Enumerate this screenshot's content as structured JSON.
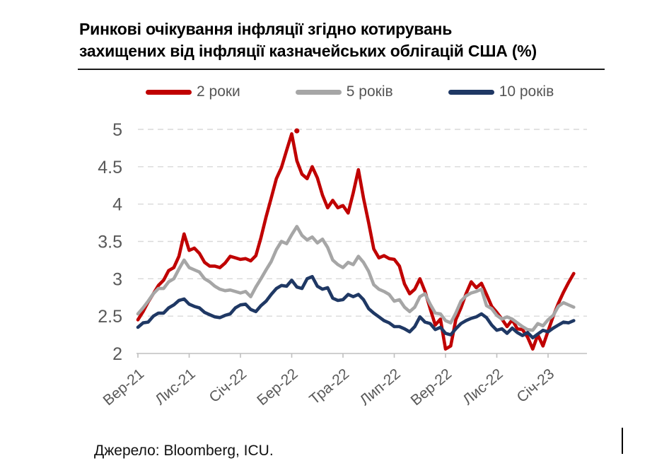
{
  "title": {
    "line1": "Ринкові очікування інфляції згідно котирувань",
    "line2": "захищених від інфляції казначейських облігацій США (%)"
  },
  "source": {
    "text": "Джерело: Bloomberg, ICU."
  },
  "chart_data": {
    "type": "line",
    "title": "Ринкові очікування інфляції згідно котирувань захищених від інфляції казначейських облігацій США (%)",
    "legend_position": "top",
    "grid": "horizontal-dashed",
    "colors": {
      "accent_red": "#C00000",
      "gray": "#A6A6A6",
      "navy": "#1F3864",
      "gridline": "#D9D9D9",
      "axis": "#BFBFBF",
      "tick_text": "#595959"
    },
    "y_axis": {
      "ticks": [
        2,
        2.5,
        3,
        3.5,
        4,
        4.5,
        5
      ],
      "range": [
        2,
        5
      ]
    },
    "x_axis": {
      "tick_labels": [
        "Вер-21",
        "Лис-21",
        "Січ-22",
        "Бер-22",
        "Тра-22",
        "Лип-22",
        "Вер-22",
        "Лис-22",
        "Січ-23"
      ],
      "tick_positions_months": [
        0,
        2,
        4,
        6,
        8,
        10,
        12,
        14,
        16
      ],
      "data_end_month": 17.0
    },
    "x_start_month": 0,
    "x_step_month": 0.2,
    "series": [
      {
        "name": "2 роки",
        "color": "#C00000",
        "values": [
          2.45,
          2.56,
          2.69,
          2.8,
          2.91,
          2.98,
          3.11,
          3.15,
          3.3,
          3.6,
          3.38,
          3.41,
          3.34,
          3.22,
          3.17,
          3.17,
          3.15,
          3.21,
          3.3,
          3.28,
          3.26,
          3.27,
          3.24,
          3.31,
          3.55,
          3.83,
          4.08,
          4.34,
          4.49,
          4.72,
          4.94,
          4.58,
          4.4,
          4.34,
          4.5,
          4.35,
          4.12,
          3.95,
          4.05,
          3.95,
          3.98,
          3.88,
          4.15,
          4.46,
          4.08,
          3.75,
          3.4,
          3.28,
          3.31,
          3.27,
          3.26,
          3.17,
          2.93,
          2.8,
          2.86,
          3.0,
          2.83,
          2.6,
          2.38,
          2.46,
          2.06,
          2.1,
          2.45,
          2.61,
          2.8,
          2.96,
          2.88,
          2.94,
          2.79,
          2.63,
          2.55,
          2.46,
          2.36,
          2.45,
          2.33,
          2.32,
          2.22,
          2.06,
          2.25,
          2.1,
          2.3,
          2.5,
          2.67,
          2.82,
          2.95,
          3.07
        ]
      },
      {
        "name": "5 років",
        "color": "#A6A6A6",
        "values": [
          2.53,
          2.61,
          2.7,
          2.8,
          2.87,
          2.87,
          2.96,
          3.0,
          3.13,
          3.25,
          3.15,
          3.12,
          3.09,
          3.0,
          2.96,
          2.9,
          2.86,
          2.84,
          2.85,
          2.83,
          2.81,
          2.83,
          2.76,
          2.89,
          3.0,
          3.12,
          3.23,
          3.39,
          3.5,
          3.47,
          3.59,
          3.7,
          3.58,
          3.52,
          3.56,
          3.48,
          3.53,
          3.42,
          3.25,
          3.19,
          3.15,
          3.22,
          3.19,
          3.3,
          3.22,
          3.1,
          2.92,
          2.86,
          2.83,
          2.79,
          2.7,
          2.72,
          2.62,
          2.56,
          2.62,
          2.76,
          2.8,
          2.66,
          2.54,
          2.53,
          2.44,
          2.41,
          2.54,
          2.7,
          2.77,
          2.81,
          2.83,
          2.86,
          2.64,
          2.6,
          2.51,
          2.46,
          2.49,
          2.46,
          2.41,
          2.36,
          2.32,
          2.31,
          2.4,
          2.37,
          2.45,
          2.51,
          2.63,
          2.68,
          2.65,
          2.62
        ]
      },
      {
        "name": "10 років",
        "color": "#1F3864",
        "values": [
          2.35,
          2.41,
          2.42,
          2.5,
          2.54,
          2.54,
          2.61,
          2.65,
          2.71,
          2.73,
          2.66,
          2.63,
          2.61,
          2.55,
          2.52,
          2.49,
          2.48,
          2.51,
          2.53,
          2.61,
          2.65,
          2.66,
          2.59,
          2.56,
          2.64,
          2.7,
          2.79,
          2.87,
          2.91,
          2.9,
          2.98,
          2.89,
          2.87,
          3.0,
          3.03,
          2.9,
          2.86,
          2.88,
          2.74,
          2.71,
          2.72,
          2.79,
          2.76,
          2.79,
          2.72,
          2.6,
          2.54,
          2.49,
          2.44,
          2.41,
          2.36,
          2.36,
          2.33,
          2.29,
          2.36,
          2.49,
          2.42,
          2.4,
          2.32,
          2.35,
          2.27,
          2.25,
          2.33,
          2.4,
          2.44,
          2.47,
          2.49,
          2.53,
          2.48,
          2.38,
          2.31,
          2.33,
          2.27,
          2.34,
          2.28,
          2.24,
          2.28,
          2.21,
          2.26,
          2.31,
          2.29,
          2.34,
          2.38,
          2.42,
          2.41,
          2.44
        ]
      }
    ],
    "peak_marker": {
      "series": "2 роки",
      "x_month": 6.2,
      "value": 4.98
    }
  }
}
